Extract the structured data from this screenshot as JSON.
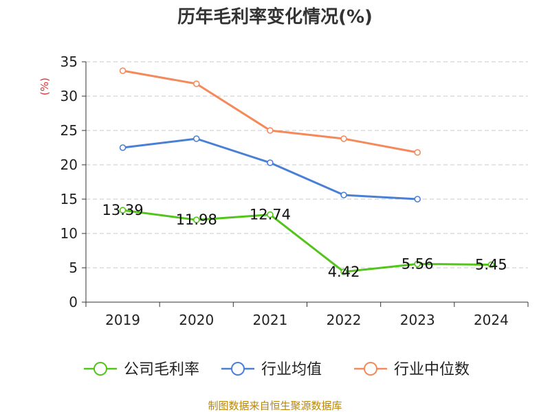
{
  "chart_data": {
    "type": "line",
    "title": "历年毛利率变化情况(%)",
    "ylabel": "(%)",
    "xlabel": "",
    "categories": [
      "2019",
      "2020",
      "2021",
      "2022",
      "2023",
      "2024"
    ],
    "ylim": [
      0,
      35
    ],
    "yticks": [
      0,
      5,
      10,
      15,
      20,
      25,
      30,
      35
    ],
    "grid": true,
    "legend_position": "bottom",
    "series": [
      {
        "name": "公司毛利率",
        "color": "#52c41a",
        "values": [
          13.39,
          11.98,
          12.74,
          4.42,
          5.56,
          5.45
        ],
        "labels": [
          "13.39",
          "11.98",
          "12.74",
          "4.42",
          "5.56",
          "5.45"
        ]
      },
      {
        "name": "行业均值",
        "color": "#4a7fd6",
        "values": [
          22.5,
          23.8,
          20.3,
          15.6,
          15.0,
          null
        ]
      },
      {
        "name": "行业中位数",
        "color": "#f5895a",
        "values": [
          33.7,
          31.8,
          25.0,
          23.8,
          21.8,
          null
        ]
      }
    ]
  },
  "footer": {
    "source": "制图数据来自恒生聚源数据库"
  }
}
